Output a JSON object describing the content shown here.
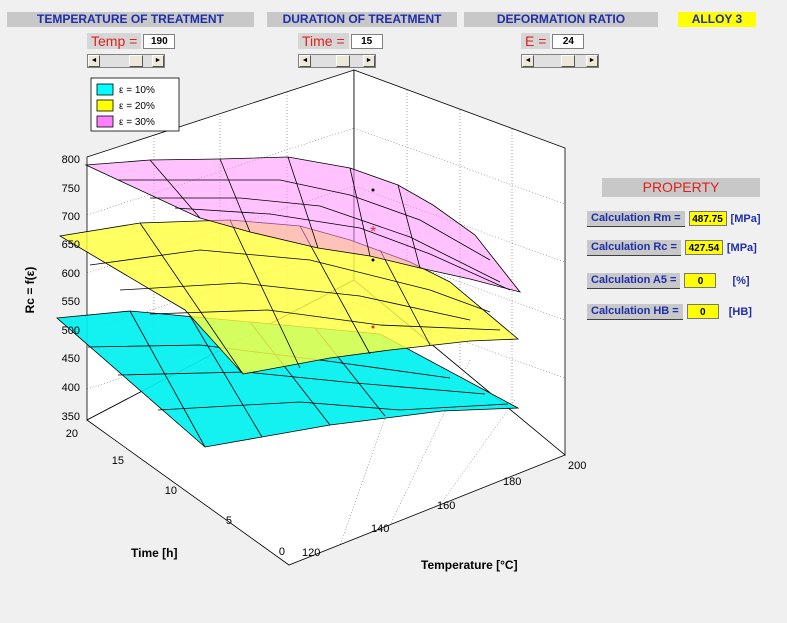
{
  "headers": {
    "temperature": "TEMPERATURE OF TREATMENT",
    "duration": "DURATION OF TREATMENT",
    "deformation": "DEFORMATION RATIO",
    "alloy": "ALLOY 3"
  },
  "params": {
    "temp": {
      "label": "Temp =",
      "value": "190"
    },
    "time": {
      "label": "Time =",
      "value": "15"
    },
    "e": {
      "label": "E =",
      "value": "24"
    }
  },
  "scroll_glyphs": {
    "left": "◄",
    "right": "►"
  },
  "scrollbars": {
    "temp_level": 0.75,
    "time_level": 0.65,
    "e_level": 0.72
  },
  "legend": [
    {
      "label": "ε = 10%",
      "color": "#00ffff"
    },
    {
      "label": "ε = 20%",
      "color": "#ffff00"
    },
    {
      "label": "ε = 30%",
      "color": "#ff80ff"
    }
  ],
  "axes": {
    "z_label": "Rc = f(ε)",
    "y_label": "Time [h]",
    "x_label": "Temperature [°C]",
    "z_ticks": [
      "800",
      "750",
      "700",
      "650",
      "600",
      "550",
      "500",
      "450",
      "400",
      "350"
    ],
    "time_ticks": [
      "20",
      "15",
      "10",
      "5",
      "0"
    ],
    "temp_ticks": [
      "120",
      "140",
      "160",
      "180",
      "200"
    ]
  },
  "property": {
    "title": "PROPERTY",
    "rows": [
      {
        "label": "Calculation Rm =",
        "value": "487.75",
        "unit": "[MPa]"
      },
      {
        "label": "Calculation Rc =",
        "value": "427.54",
        "unit": "[MPa]"
      },
      {
        "label": "Calculation A5 =",
        "value": "0",
        "unit": "[%]"
      },
      {
        "label": "Calculation HB =",
        "value": "0",
        "unit": "[HB]"
      }
    ]
  },
  "colors": {
    "header_text": "#1f2ea8",
    "label_red": "#e0201c",
    "accent_yellow": "#ffff00"
  }
}
